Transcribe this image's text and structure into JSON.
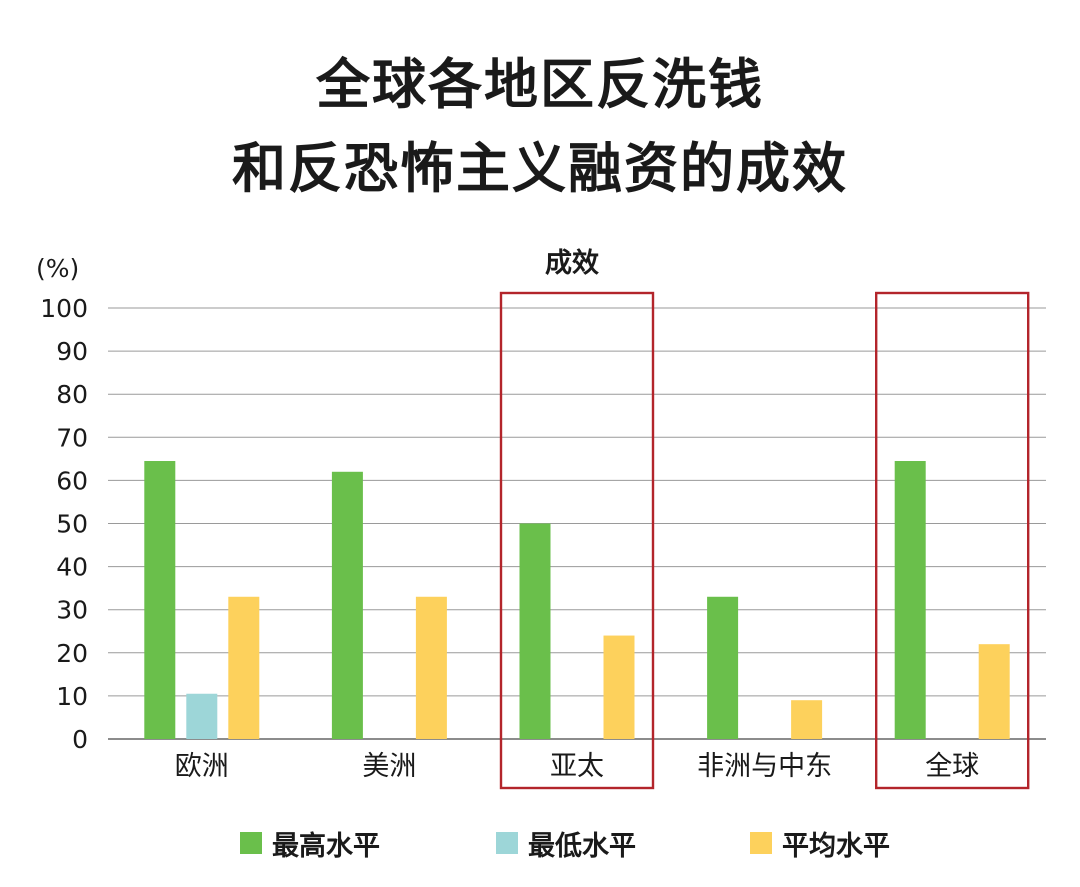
{
  "title_line1": "全球各地区反洗钱",
  "title_line2": "和反恐怖主义融资的成效",
  "chart_data": {
    "type": "bar",
    "title": "成效",
    "ylabel": "(%)",
    "ylim": [
      0,
      100
    ],
    "yticks": [
      0,
      10,
      20,
      30,
      40,
      50,
      60,
      70,
      80,
      90,
      100
    ],
    "grid": true,
    "legend_position": "bottom",
    "categories": [
      "欧洲",
      "美洲",
      "亚太",
      "非洲与中东",
      "全球"
    ],
    "highlighted_categories": [
      "亚太",
      "全球"
    ],
    "series": [
      {
        "name": "最高水平",
        "color": "#6abf4b",
        "values": [
          64.5,
          62,
          50,
          33,
          64.5
        ]
      },
      {
        "name": "最低水平",
        "color": "#9dd6d8",
        "values": [
          10.5,
          0,
          0,
          0,
          0
        ]
      },
      {
        "name": "平均水平",
        "color": "#fdd15c",
        "values": [
          33,
          33,
          24,
          9,
          22
        ]
      }
    ],
    "highlight_color": "#b3252b"
  }
}
